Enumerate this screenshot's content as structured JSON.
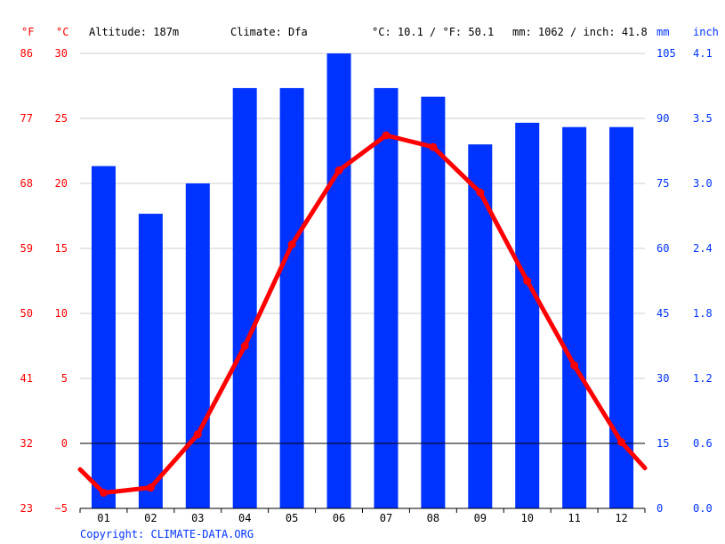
{
  "header": {
    "f_unit": "°F",
    "c_unit": "°C",
    "altitude": "Altitude: 187m",
    "climate": "Climate: Dfa",
    "avg_temp": "°C: 10.1 / °F: 50.1",
    "precip_total": "mm: 1062 / inch: 41.8",
    "mm_unit": "mm",
    "inch_unit": "inch"
  },
  "footer": {
    "copyright": "Copyright: CLIMATE-DATA.ORG"
  },
  "colors": {
    "temperature": "#ff0000",
    "precipitation": "#0033ff"
  },
  "chart_data": {
    "type": "bar",
    "categories": [
      "01",
      "02",
      "03",
      "04",
      "05",
      "06",
      "07",
      "08",
      "09",
      "10",
      "11",
      "12"
    ],
    "series": [
      {
        "kind": "bar",
        "axis": "right",
        "values": [
          79,
          68,
          75,
          97,
          97,
          105,
          97,
          95,
          84,
          89,
          88,
          88
        ]
      },
      {
        "kind": "line",
        "axis": "left",
        "values": [
          -3.8,
          -3.4,
          0.7,
          7.5,
          15.3,
          21.0,
          23.7,
          22.8,
          19.3,
          12.5,
          6.0,
          0.1
        ],
        "edge_start": -2.0,
        "edge_end": -1.9
      }
    ],
    "ylim_celsius": [
      -5,
      30
    ],
    "ylim_mm": [
      0,
      105
    ],
    "left_ticks_f": [
      "23",
      "32",
      "41",
      "50",
      "59",
      "68",
      "77",
      "86"
    ],
    "left_ticks_c": [
      "−5",
      "0",
      "5",
      "10",
      "15",
      "20",
      "25",
      "30"
    ],
    "right_ticks_mm": [
      "0",
      "15",
      "30",
      "45",
      "60",
      "75",
      "90",
      "105"
    ],
    "right_ticks_inch": [
      "0.0",
      "0.6",
      "1.2",
      "1.8",
      "2.4",
      "3.0",
      "3.5",
      "4.1"
    ],
    "grid": true,
    "legend": "none"
  }
}
